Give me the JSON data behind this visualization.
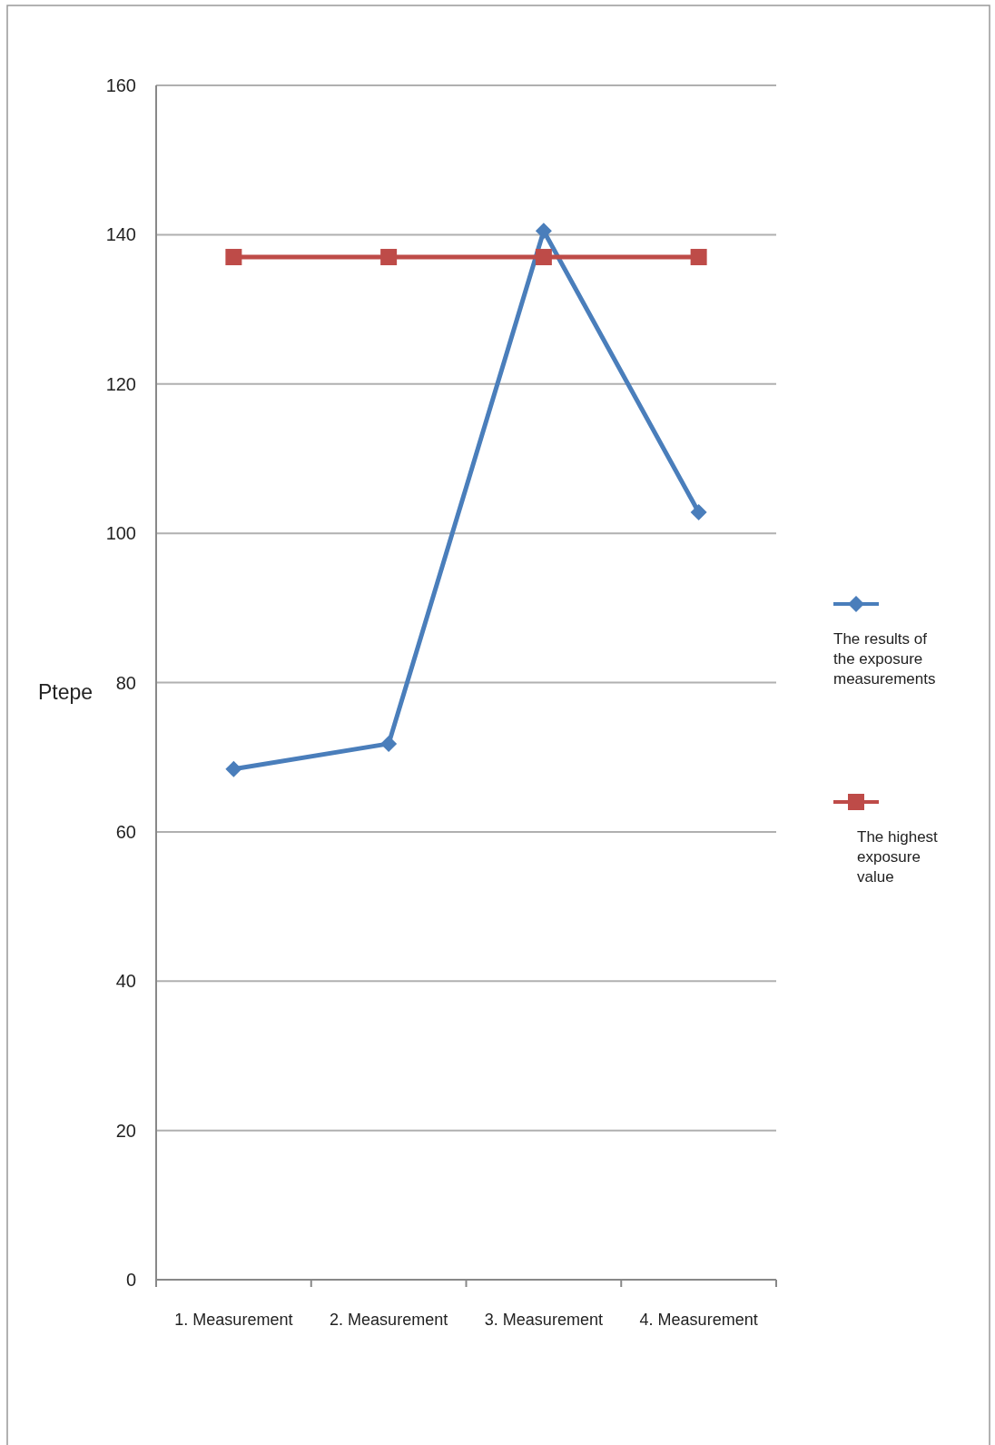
{
  "chart_data": {
    "type": "line",
    "ylabel": "Ptepe",
    "categories": [
      "1. Measurement",
      "2. Measurement",
      "3. Measurement",
      "4. Measurement"
    ],
    "series": [
      {
        "name": "The results of the exposure measurements",
        "color": "#4a7ebb",
        "marker": "diamond",
        "values": [
          68.4,
          71.8,
          140.5,
          102.8
        ]
      },
      {
        "name": "The highest exposure value",
        "color": "#be4b48",
        "marker": "square",
        "values": [
          137,
          137,
          137,
          137
        ]
      }
    ],
    "ylim": [
      0,
      160
    ],
    "yticks": [
      0,
      20,
      40,
      60,
      80,
      100,
      120,
      140,
      160
    ],
    "grid": "y",
    "legend": "right"
  }
}
